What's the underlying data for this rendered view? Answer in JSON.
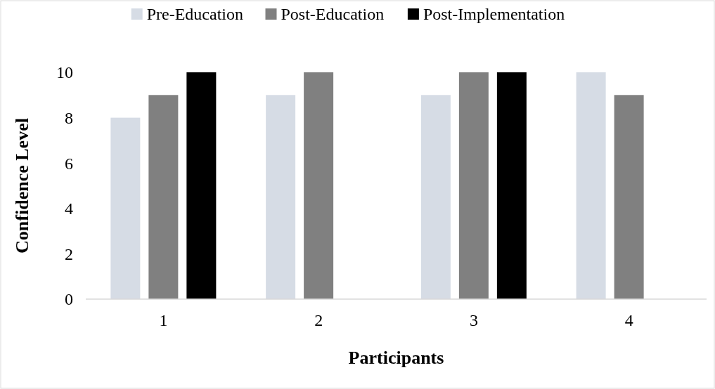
{
  "chart_data": {
    "type": "bar",
    "xlabel": "Participants",
    "ylabel": "Confidence Level",
    "categories": [
      "1",
      "2",
      "3",
      "4"
    ],
    "series": [
      {
        "name": "Pre-Education",
        "color": "#d6dce5",
        "values": [
          8,
          9,
          9,
          10
        ]
      },
      {
        "name": "Post-Education",
        "color": "#808080",
        "values": [
          9,
          10,
          10,
          9
        ]
      },
      {
        "name": "Post-Implementation",
        "color": "#000000",
        "values": [
          10,
          null,
          10,
          null
        ]
      }
    ],
    "ylim": [
      0,
      10
    ],
    "yticks": [
      0,
      2,
      4,
      6,
      8,
      10
    ],
    "grid": false,
    "legend": "top"
  }
}
